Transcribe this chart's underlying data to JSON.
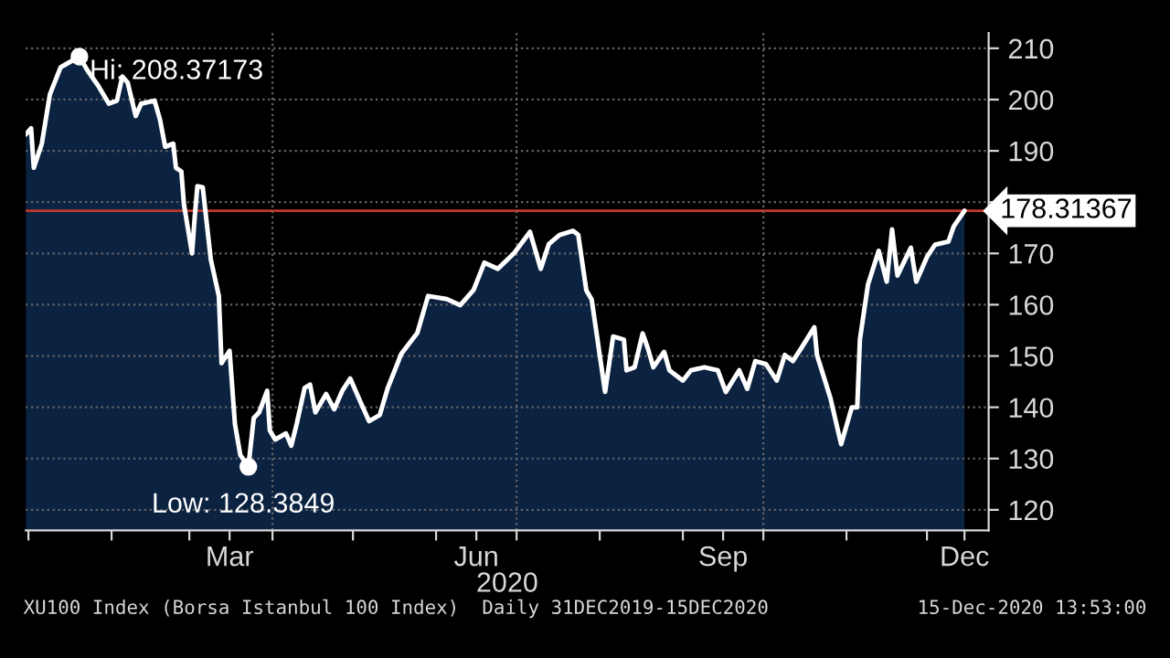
{
  "chart_data": {
    "type": "area",
    "xlabel": "2020",
    "x": [
      "2019-12-31",
      "2020-01-02",
      "2020-01-03",
      "2020-01-06",
      "2020-01-09",
      "2020-01-13",
      "2020-01-15",
      "2020-01-20",
      "2020-01-23",
      "2020-01-27",
      "2020-01-31",
      "2020-02-03",
      "2020-02-05",
      "2020-02-07",
      "2020-02-10",
      "2020-02-12",
      "2020-02-17",
      "2020-02-19",
      "2020-02-21",
      "2020-02-24",
      "2020-02-25",
      "2020-02-27",
      "2020-02-28",
      "2020-03-02",
      "2020-03-03",
      "2020-03-04",
      "2020-03-06",
      "2020-03-09",
      "2020-03-12",
      "2020-03-13",
      "2020-03-16",
      "2020-03-18",
      "2020-03-20",
      "2020-03-23",
      "2020-03-25",
      "2020-03-27",
      "2020-03-30",
      "2020-03-31",
      "2020-04-02",
      "2020-04-06",
      "2020-04-08",
      "2020-04-10",
      "2020-04-13",
      "2020-04-15",
      "2020-04-17",
      "2020-04-21",
      "2020-04-24",
      "2020-04-27",
      "2020-04-30",
      "2020-05-04",
      "2020-05-07",
      "2020-05-11",
      "2020-05-14",
      "2020-05-19",
      "2020-05-25",
      "2020-05-29",
      "2020-06-05",
      "2020-06-10",
      "2020-06-15",
      "2020-06-19",
      "2020-06-24",
      "2020-06-30",
      "2020-07-06",
      "2020-07-10",
      "2020-07-13",
      "2020-07-17",
      "2020-07-22",
      "2020-07-24",
      "2020-07-27",
      "2020-07-29",
      "2020-08-03",
      "2020-08-06",
      "2020-08-10",
      "2020-08-11",
      "2020-08-14",
      "2020-08-17",
      "2020-08-19",
      "2020-08-21",
      "2020-08-25",
      "2020-08-27",
      "2020-09-01",
      "2020-09-04",
      "2020-09-09",
      "2020-09-14",
      "2020-09-17",
      "2020-09-22",
      "2020-09-25",
      "2020-09-28",
      "2020-10-02",
      "2020-10-06",
      "2020-10-09",
      "2020-10-12",
      "2020-10-15",
      "2020-10-20",
      "2020-10-21",
      "2020-10-26",
      "2020-10-30",
      "2020-11-03",
      "2020-11-05",
      "2020-11-06",
      "2020-11-09",
      "2020-11-13",
      "2020-11-16",
      "2020-11-18",
      "2020-11-20",
      "2020-11-25",
      "2020-11-27",
      "2020-12-01",
      "2020-12-04",
      "2020-12-09",
      "2020-12-11",
      "2020-12-15"
    ],
    "series": [
      {
        "color": "#0b2241",
        "values": [
          193.2,
          194.4,
          186.7,
          191.4,
          201,
          206.3,
          206.9,
          208.37173,
          205.7,
          202.7,
          199.2,
          199.8,
          204.5,
          203.3,
          196.8,
          199.2,
          199.8,
          196.2,
          190.8,
          191.4,
          186.7,
          186,
          179.5,
          170,
          177.1,
          183.1,
          182.9,
          168.8,
          161.7,
          148.6,
          151,
          136.7,
          130.7,
          128.3849,
          137.9,
          139,
          143.2,
          135.5,
          133.7,
          134.9,
          132.5,
          136.7,
          143.8,
          144.4,
          139,
          142.6,
          139.6,
          143.2,
          145.6,
          140.8,
          137.3,
          138.5,
          143.8,
          150.4,
          154.5,
          161.7,
          161.1,
          159.9,
          162.9,
          168.2,
          167,
          170,
          174.2,
          167,
          171.8,
          173.6,
          174.4,
          173.6,
          162.8,
          161,
          143,
          153.8,
          153.2,
          147.2,
          147.8,
          154.4,
          151.4,
          147.8,
          150.8,
          147.2,
          145.2,
          147.2,
          147.8,
          147.2,
          143,
          147.2,
          143.6,
          149,
          148.4,
          145.2,
          150.2,
          149,
          151.4,
          155.6,
          150.2,
          141.8,
          132.8,
          140,
          140,
          153.2,
          163.9,
          170.5,
          164.5,
          174.7,
          165.7,
          171.1,
          164.5,
          169.3,
          171.7,
          172.3,
          175.3,
          178.31367
        ]
      }
    ],
    "xlim": [
      "2019-12-31",
      "2020-12-24"
    ],
    "xticks": [
      {
        "value": "2020-01-01",
        "label": null
      },
      {
        "value": "2020-02-01",
        "label": null
      },
      {
        "value": "2020-03-01",
        "label": null
      },
      {
        "value": "2020-03-16",
        "label": "Mar"
      },
      {
        "value": "2020-04-01",
        "label": null
      },
      {
        "value": "2020-05-01",
        "label": null
      },
      {
        "value": "2020-06-01",
        "label": null
      },
      {
        "value": "2020-06-16",
        "label": "Jun"
      },
      {
        "value": "2020-07-01",
        "label": null
      },
      {
        "value": "2020-08-01",
        "label": null
      },
      {
        "value": "2020-09-01",
        "label": null
      },
      {
        "value": "2020-09-16",
        "label": "Sep"
      },
      {
        "value": "2020-10-01",
        "label": null
      },
      {
        "value": "2020-11-01",
        "label": null
      },
      {
        "value": "2020-12-01",
        "label": null
      },
      {
        "value": "2020-12-15",
        "label": "Dec"
      }
    ],
    "ylim": [
      116,
      213
    ],
    "yticks": [
      120,
      130,
      140,
      150,
      160,
      170,
      {
        "value": 180,
        "label": null
      },
      190,
      200,
      210
    ],
    "grid": "y",
    "ref_lines": [
      {
        "axis": "y",
        "value": 178.31367,
        "label": "178.31367",
        "color": "#c0392b",
        "line_style": "solid"
      },
      {
        "axis": "x",
        "value": "2020-04-01",
        "label": null,
        "color": "#666666",
        "line_style": "dotted"
      },
      {
        "axis": "x",
        "value": "2020-07-01",
        "label": null,
        "color": "#666666",
        "line_style": "dotted"
      },
      {
        "axis": "x",
        "value": "2020-10-01",
        "label": null,
        "color": "#666666",
        "line_style": "dotted"
      }
    ],
    "annotations": [
      {
        "text": "Hi: 208.37173",
        "x": "2020-01-20",
        "y": 208.37173
      },
      {
        "text": "Low: 128.3849",
        "x": "2020-03-23",
        "y": 128.3849
      },
      "XU100 Index (Borsa Istanbul 100 Index)  Daily 31DEC2019-15DEC2020",
      "15-Dec-2020 13:53:00"
    ]
  }
}
